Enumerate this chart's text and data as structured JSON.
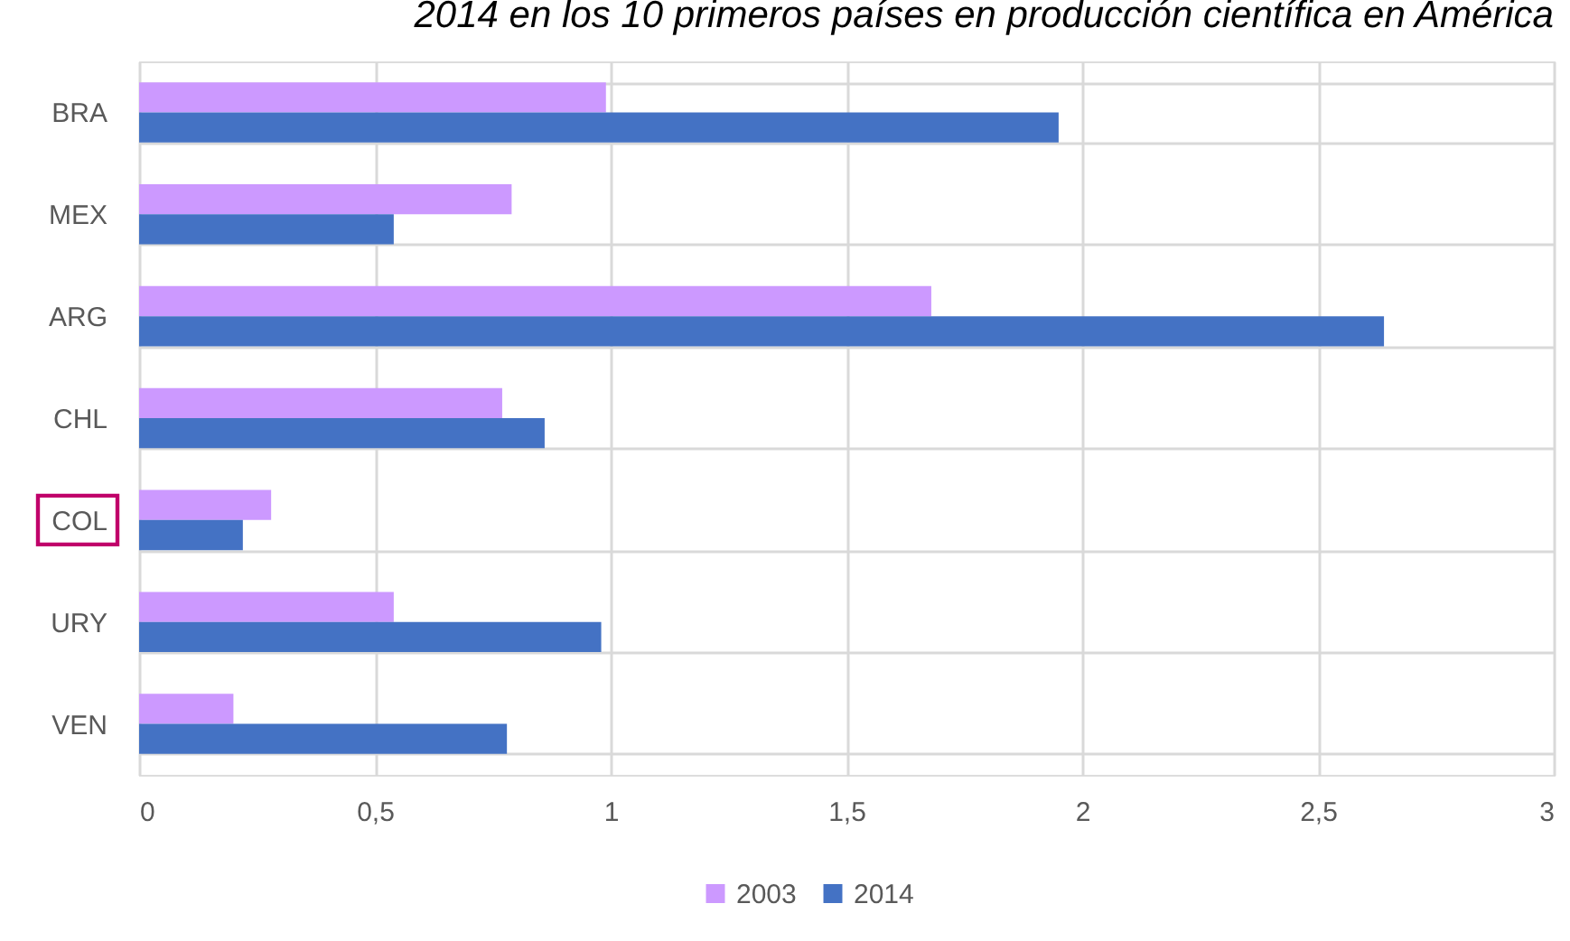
{
  "chart_data": {
    "type": "bar",
    "orientation": "horizontal",
    "title": "2014 en los 10 primeros países en producción científica en América",
    "categories": [
      "BRA",
      "MEX",
      "ARG",
      "CHL",
      "COL",
      "URY",
      "VEN"
    ],
    "series": [
      {
        "name": "2003",
        "color": "#cc99ff",
        "values": [
          0.99,
          0.79,
          1.68,
          0.77,
          0.28,
          0.54,
          0.2
        ]
      },
      {
        "name": "2014",
        "color": "#4472c4",
        "values": [
          1.95,
          0.54,
          2.64,
          0.86,
          0.22,
          0.98,
          0.78
        ]
      }
    ],
    "xlim": [
      0,
      3
    ],
    "xticks": [
      0,
      {
        "value": 0.5,
        "label": "0,5"
      },
      1,
      {
        "value": 1.5,
        "label": "1,5"
      },
      2,
      {
        "value": 2.5,
        "label": "2,5"
      },
      3
    ],
    "grid": true,
    "legend": "bottom"
  }
}
